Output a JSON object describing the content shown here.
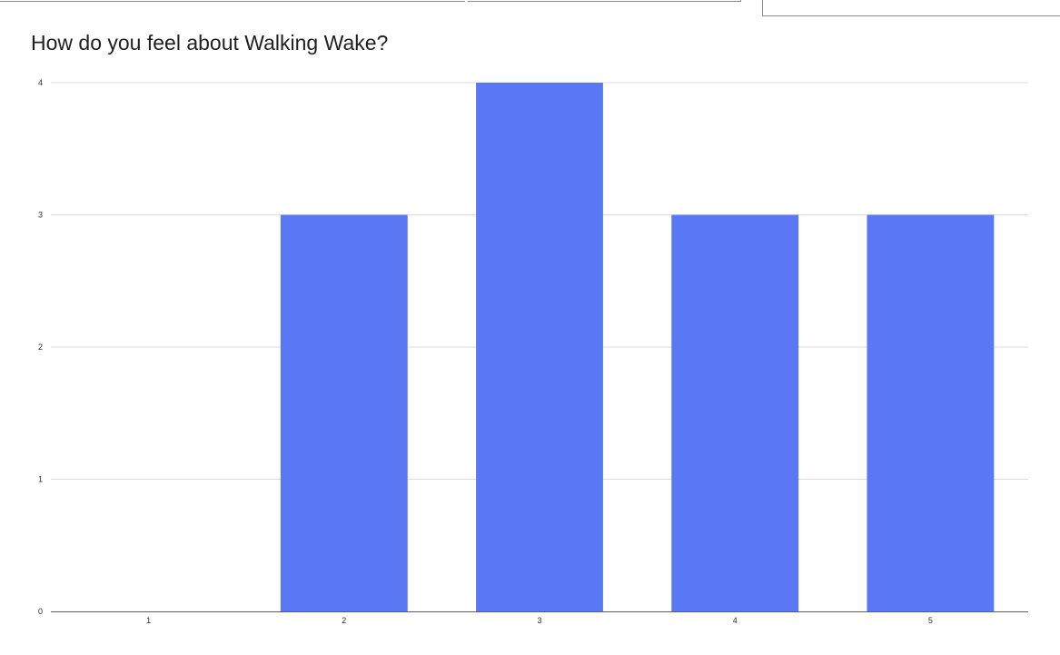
{
  "chart_data": {
    "type": "bar",
    "title": "How do you feel about Walking Wake?",
    "categories": [
      "1",
      "2",
      "3",
      "4",
      "5"
    ],
    "values": [
      0,
      3,
      4,
      3,
      3
    ],
    "xlabel": "",
    "ylabel": "",
    "ylim": [
      0,
      4
    ],
    "yticks": [
      "0",
      "1",
      "2",
      "3",
      "4"
    ],
    "grid": true,
    "legend": "none",
    "bar_color": "#5b78f4",
    "grid_color": "#dcdcdc",
    "axis_color": "#5f5f5f"
  }
}
